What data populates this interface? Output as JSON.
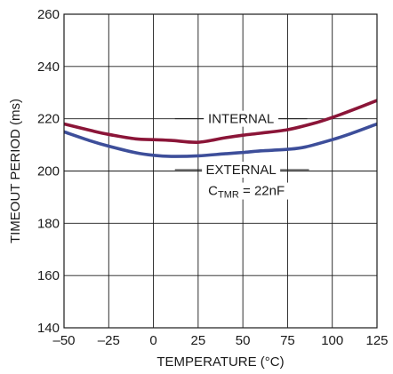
{
  "chart_data": {
    "type": "line",
    "title": "",
    "xlabel": "TEMPERATURE (°C)",
    "ylabel": "TIMEOUT PERIOD (ms)",
    "xlim": [
      -50,
      125
    ],
    "ylim": [
      140,
      260
    ],
    "xticks": [
      -50,
      -25,
      0,
      25,
      50,
      75,
      100,
      125
    ],
    "xtick_labels": [
      "–50",
      "–25",
      "0",
      "25",
      "50",
      "75",
      "100",
      "125"
    ],
    "yticks": [
      140,
      160,
      180,
      200,
      220,
      240,
      260
    ],
    "ytick_labels": [
      "140",
      "160",
      "180",
      "200",
      "220",
      "240",
      "260"
    ],
    "grid": true,
    "series": [
      {
        "name": "INTERNAL",
        "color": "#8b1538",
        "x": [
          -50,
          -35,
          -25,
          -10,
          0,
          10,
          25,
          40,
          50,
          60,
          75,
          90,
          100,
          110,
          125
        ],
        "y": [
          218,
          215.5,
          214,
          212.3,
          212,
          211.7,
          211,
          212.7,
          213.7,
          214.5,
          215.8,
          218.3,
          220.5,
          223,
          227
        ]
      },
      {
        "name": "EXTERNAL",
        "color": "#3d4e9a",
        "x": [
          -50,
          -35,
          -25,
          -10,
          0,
          10,
          25,
          40,
          50,
          60,
          75,
          85,
          100,
          110,
          125
        ],
        "y": [
          215,
          211.5,
          209.5,
          207,
          206,
          205.6,
          205.8,
          206.6,
          207.1,
          207.7,
          208.3,
          209.2,
          212,
          214.2,
          218
        ]
      }
    ],
    "annotations": {
      "internal_label": "INTERNAL",
      "external_label": "EXTERNAL",
      "ctmr_main": "C",
      "ctmr_sub": "TMR",
      "ctmr_value": " = 22nF"
    }
  }
}
